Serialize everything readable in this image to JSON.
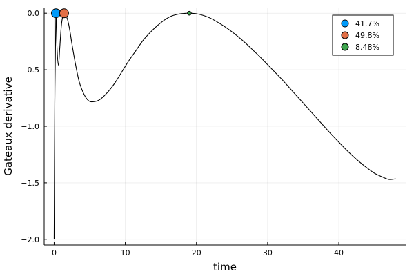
{
  "chart_data": {
    "type": "line",
    "title": "",
    "xlabel": "time",
    "ylabel": "Gateaux derivative",
    "xlim": [
      -1.4,
      49.4
    ],
    "ylim": [
      -2.05,
      0.05
    ],
    "xticks": [
      0,
      10,
      20,
      30,
      40
    ],
    "xtick_labels": [
      "0",
      "10",
      "20",
      "30",
      "40"
    ],
    "yticks": [
      0.0,
      -0.5,
      -1.0,
      -1.5,
      -2.0
    ],
    "ytick_labels": [
      "0.0",
      "−0.5",
      "−1.0",
      "−1.5",
      "−2.0"
    ],
    "grid": true,
    "legend_position": "top-right",
    "line": {
      "color": "#000000",
      "x": [
        0.0,
        0.1,
        0.25,
        0.4,
        0.6,
        0.8,
        1.0,
        1.2,
        1.4,
        1.6,
        1.9,
        2.2,
        2.5,
        3.0,
        3.5,
        4.0,
        4.5,
        5.0,
        5.8,
        6.5,
        7.5,
        8.5,
        9.5,
        10.5,
        11.5,
        12.5,
        13.5,
        14.5,
        15.5,
        16.5,
        17.5,
        18.5,
        19.0,
        20.0,
        21.0,
        22.0,
        23.0,
        24.0,
        25.0,
        26.0,
        27.0,
        28.0,
        29.0,
        30.0,
        31.0,
        32.0,
        33.0,
        34.0,
        35.0,
        36.0,
        37.0,
        38.0,
        39.0,
        40.0,
        41.0,
        42.0,
        43.0,
        44.0,
        45.0,
        46.0,
        47.0,
        48.0
      ],
      "y": [
        -2.0,
        -0.8,
        0.0,
        -0.3,
        -0.46,
        -0.3,
        -0.12,
        -0.03,
        0.0,
        -0.01,
        -0.06,
        -0.15,
        -0.27,
        -0.45,
        -0.6,
        -0.69,
        -0.75,
        -0.78,
        -0.78,
        -0.76,
        -0.7,
        -0.62,
        -0.52,
        -0.42,
        -0.33,
        -0.24,
        -0.17,
        -0.11,
        -0.06,
        -0.025,
        -0.008,
        -0.001,
        0.0,
        -0.005,
        -0.02,
        -0.045,
        -0.08,
        -0.12,
        -0.165,
        -0.215,
        -0.27,
        -0.33,
        -0.39,
        -0.455,
        -0.52,
        -0.585,
        -0.655,
        -0.725,
        -0.795,
        -0.865,
        -0.935,
        -1.005,
        -1.075,
        -1.14,
        -1.205,
        -1.265,
        -1.32,
        -1.37,
        -1.415,
        -1.445,
        -1.47,
        -1.465
      ]
    },
    "series": [
      {
        "name": "41.7%",
        "x": 0.25,
        "y": 0.0,
        "color": "#009af9",
        "size": 6.5
      },
      {
        "name": "49.8%",
        "x": 1.4,
        "y": 0.0,
        "color": "#e26f46",
        "size": 6.5
      },
      {
        "name": "8.48%",
        "x": 19.0,
        "y": 0.0,
        "color": "#3da44d",
        "size": 2.8
      }
    ]
  }
}
